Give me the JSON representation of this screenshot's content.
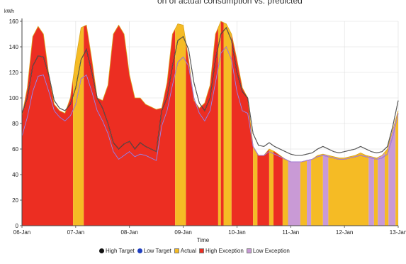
{
  "partial_title": "on of actual consumption vs. predicted",
  "colors": {
    "high_target": "#111111",
    "low_target": "#8a5bc8",
    "actual": "#f5bb25",
    "high_exception": "#ec2e22",
    "low_exception": "#c99ad6",
    "grid": "#dddddd",
    "axis": "#444444"
  },
  "chart_data": {
    "type": "area",
    "ylabel": "kWh",
    "xlabel": "Time",
    "ylim": [
      0,
      160
    ],
    "yticks": [
      "0",
      "20",
      "40",
      "60",
      "80",
      "100",
      "120",
      "140",
      "160"
    ],
    "xlim": [
      0,
      7
    ],
    "xticks": [
      "06-Jan",
      "07-Jan",
      "08-Jan",
      "09-Jan",
      "10-Jan",
      "11-Jan",
      "12-Jan",
      "13-Jan"
    ],
    "grid": true,
    "legend_position": "bottom",
    "legend": [
      {
        "label": "High Target",
        "symbol": "dot",
        "color": "#111111"
      },
      {
        "label": "Low Target",
        "symbol": "dot",
        "color": "#1f3fbf"
      },
      {
        "label": "Actual",
        "symbol": "square",
        "color": "#f5bb25"
      },
      {
        "label": "High Exception",
        "symbol": "square",
        "color": "#ec2e22"
      },
      {
        "label": "Low Exception",
        "symbol": "square",
        "color": "#c99ad6"
      }
    ],
    "x": [
      0,
      0.1,
      0.2,
      0.3,
      0.4,
      0.5,
      0.6,
      0.7,
      0.8,
      0.9,
      1.0,
      1.1,
      1.2,
      1.3,
      1.4,
      1.5,
      1.6,
      1.7,
      1.8,
      1.9,
      2.0,
      2.1,
      2.2,
      2.3,
      2.4,
      2.5,
      2.6,
      2.7,
      2.8,
      2.9,
      3.0,
      3.1,
      3.2,
      3.3,
      3.4,
      3.5,
      3.6,
      3.7,
      3.8,
      3.9,
      4.0,
      4.1,
      4.2,
      4.3,
      4.4,
      4.5,
      4.6,
      4.7,
      4.8,
      4.9,
      5.0,
      5.1,
      5.2,
      5.3,
      5.4,
      5.5,
      5.6,
      5.7,
      5.8,
      5.9,
      6.0,
      6.1,
      6.2,
      6.3,
      6.4,
      6.5,
      6.6,
      6.7,
      6.8,
      6.9,
      7.0
    ],
    "series": [
      {
        "name": "High Target",
        "values": [
          88,
          100,
          125,
          133,
          132,
          118,
          98,
          92,
          90,
          95,
          108,
          130,
          138,
          120,
          100,
          92,
          80,
          65,
          60,
          64,
          66,
          60,
          65,
          62,
          60,
          58,
          90,
          100,
          125,
          145,
          148,
          138,
          112,
          96,
          90,
          100,
          130,
          150,
          155,
          145,
          120,
          105,
          100,
          72,
          63,
          62,
          65,
          62,
          60,
          58,
          56,
          55,
          55,
          56,
          57,
          60,
          62,
          60,
          58,
          57,
          58,
          59,
          60,
          62,
          60,
          58,
          57,
          58,
          62,
          78,
          98
        ]
      },
      {
        "name": "Low Target",
        "values": [
          70,
          85,
          105,
          117,
          118,
          105,
          90,
          85,
          82,
          86,
          95,
          115,
          118,
          105,
          90,
          82,
          72,
          58,
          52,
          55,
          58,
          54,
          56,
          55,
          53,
          51,
          78,
          90,
          110,
          128,
          132,
          125,
          100,
          88,
          82,
          90,
          112,
          135,
          140,
          130,
          105,
          90,
          88,
          62,
          55,
          55,
          58,
          56,
          54,
          52,
          50,
          50,
          50,
          51,
          52,
          54,
          55,
          54,
          53,
          52,
          52,
          53,
          54,
          55,
          54,
          53,
          52,
          53,
          56,
          70,
          88
        ]
      },
      {
        "name": "Actual",
        "values": [
          86,
          108,
          148,
          156,
          150,
          118,
          95,
          90,
          88,
          100,
          130,
          155,
          157,
          130,
          100,
          98,
          110,
          150,
          157,
          150,
          118,
          100,
          100,
          95,
          93,
          91,
          92,
          112,
          150,
          158,
          157,
          130,
          98,
          92,
          96,
          110,
          150,
          160,
          158,
          150,
          130,
          108,
          100,
          62,
          55,
          55,
          60,
          58,
          55,
          52,
          50,
          50,
          50,
          51,
          52,
          55,
          56,
          55,
          54,
          53,
          53,
          54,
          55,
          57,
          55,
          54,
          53,
          55,
          60,
          75,
          90
        ]
      }
    ],
    "bands": [
      {
        "type": "high_exception",
        "x0": 0.0,
        "x1": 0.95
      },
      {
        "type": "actual",
        "x0": 0.95,
        "x1": 1.15
      },
      {
        "type": "high_exception",
        "x0": 1.15,
        "x1": 2.85
      },
      {
        "type": "actual",
        "x0": 2.85,
        "x1": 3.05
      },
      {
        "type": "high_exception",
        "x0": 3.05,
        "x1": 3.65
      },
      {
        "type": "actual",
        "x0": 3.65,
        "x1": 3.7
      },
      {
        "type": "high_exception",
        "x0": 3.7,
        "x1": 3.75
      },
      {
        "type": "actual",
        "x0": 3.75,
        "x1": 3.9
      },
      {
        "type": "high_exception",
        "x0": 3.9,
        "x1": 4.3
      },
      {
        "type": "actual",
        "x0": 4.3,
        "x1": 4.38
      },
      {
        "type": "high_exception",
        "x0": 4.38,
        "x1": 4.6
      },
      {
        "type": "actual",
        "x0": 4.6,
        "x1": 4.68
      },
      {
        "type": "high_exception",
        "x0": 4.68,
        "x1": 4.85
      },
      {
        "type": "actual",
        "x0": 4.85,
        "x1": 4.95
      },
      {
        "type": "low_exception",
        "x0": 4.95,
        "x1": 5.18
      },
      {
        "type": "actual",
        "x0": 5.18,
        "x1": 5.3
      },
      {
        "type": "low_exception",
        "x0": 5.3,
        "x1": 5.38
      },
      {
        "type": "actual",
        "x0": 5.38,
        "x1": 5.6
      },
      {
        "type": "low_exception",
        "x0": 5.6,
        "x1": 5.7
      },
      {
        "type": "actual",
        "x0": 5.7,
        "x1": 6.45
      },
      {
        "type": "low_exception",
        "x0": 6.45,
        "x1": 6.55
      },
      {
        "type": "actual",
        "x0": 6.55,
        "x1": 6.62
      },
      {
        "type": "low_exception",
        "x0": 6.62,
        "x1": 6.75
      },
      {
        "type": "actual",
        "x0": 6.75,
        "x1": 6.82
      },
      {
        "type": "low_exception",
        "x0": 6.82,
        "x1": 6.95
      },
      {
        "type": "actual",
        "x0": 6.95,
        "x1": 7.0
      }
    ]
  }
}
